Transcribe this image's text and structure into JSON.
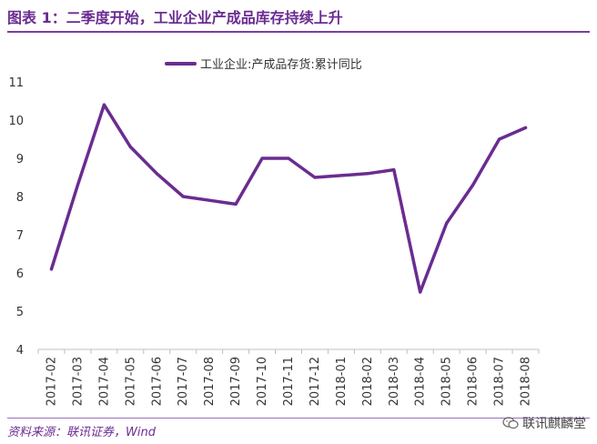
{
  "header": {
    "title": "图表 1：二季度开始，工业企业产成品库存持续上升"
  },
  "footer": {
    "source": "资料来源：联讯证券，Wind",
    "watermark": "联讯麒麟堂",
    "watermark_icon": "wechat-icon"
  },
  "colors": {
    "series": "#6a2c91",
    "title": "#6a2c91",
    "axis": "#bfbfbf"
  },
  "chart_data": {
    "type": "line",
    "title": "",
    "xlabel": "",
    "ylabel": "",
    "ylim": [
      4,
      11
    ],
    "yticks": [
      "4",
      "5",
      "6",
      "7",
      "8",
      "9",
      "10",
      "11"
    ],
    "grid": false,
    "legend_position": "top-center",
    "x": [
      "2017-02",
      "2017-03",
      "2017-04",
      "2017-05",
      "2017-06",
      "2017-07",
      "2017-08",
      "2017-09",
      "2017-10",
      "2017-11",
      "2017-12",
      "2018-01",
      "2018-02",
      "2018-03",
      "2018-04",
      "2018-05",
      "2018-06",
      "2018-07",
      "2018-08"
    ],
    "series": [
      {
        "name": "工业企业:产成品存货:累计同比",
        "values": [
          6.1,
          8.3,
          10.4,
          9.3,
          8.6,
          8.0,
          7.9,
          7.8,
          9.0,
          9.0,
          8.5,
          8.55,
          8.6,
          8.7,
          5.5,
          7.3,
          8.3,
          9.5,
          9.8
        ]
      }
    ]
  }
}
